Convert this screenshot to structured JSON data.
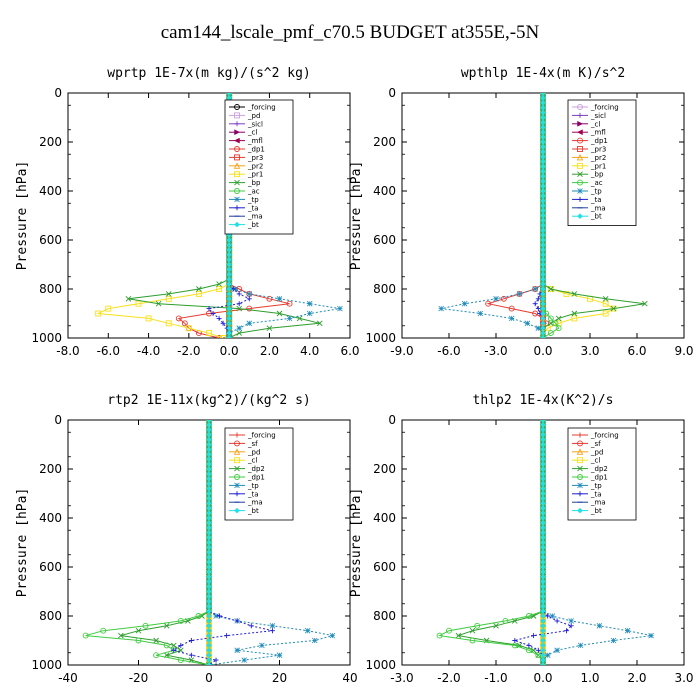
{
  "figure_title": "cam144_lscale_pmf_c70.5  BUDGET at355E,-5N",
  "chart_data": [
    {
      "type": "line",
      "title": "wprtp  1E-7x(m kg)/(s^2 kg)",
      "ylabel": "Pressure [hPa]",
      "xlim": [
        -8,
        6
      ],
      "ylim": [
        1000,
        0
      ],
      "xticks": [
        "-8.0",
        "-6.0",
        "-4.0",
        "-2.0",
        "0.0",
        "2.0",
        "4.0",
        "6.0"
      ],
      "yticks": [
        "0",
        "200",
        "400",
        "600",
        "800",
        "1000"
      ],
      "levels": [
        780,
        800,
        820,
        840,
        860,
        880,
        900,
        920,
        940,
        960,
        980,
        1000
      ],
      "series": [
        {
          "name": "_forcing",
          "color": "#000000",
          "marker": "o",
          "values": [
            0,
            0,
            0,
            0,
            0,
            0,
            0,
            0,
            0,
            0,
            0,
            0
          ]
        },
        {
          "name": "_pd",
          "color": "#c9a0dc",
          "marker": "s",
          "values": [
            0,
            0,
            0,
            0,
            0,
            0,
            0,
            0,
            0,
            0,
            0,
            0
          ]
        },
        {
          "name": "_sicl",
          "color": "#7b3fc4",
          "marker": "+",
          "values": [
            0,
            0,
            0,
            0,
            0,
            0,
            0,
            0,
            0,
            0,
            0,
            0
          ]
        },
        {
          "name": "_cl",
          "color": "#8b0068",
          "marker": ">",
          "values": [
            0,
            0,
            0,
            0,
            0,
            0,
            0,
            0,
            0,
            0,
            0,
            0
          ]
        },
        {
          "name": "_mfl",
          "color": "#a0004f",
          "marker": "<",
          "values": [
            0,
            0,
            0,
            0,
            0,
            0,
            0,
            0,
            0,
            0,
            0,
            0
          ]
        },
        {
          "name": "_dp1",
          "color": "#e8392f",
          "marker": "o",
          "values": [
            0,
            0.5,
            1.0,
            2.0,
            3.0,
            1.0,
            -1.0,
            -2.5,
            -2.2,
            -2.0,
            -1.5,
            -0.5
          ]
        },
        {
          "name": "_pr3",
          "color": "#e8392f",
          "marker": "s",
          "values": [
            0,
            0,
            0,
            0,
            0,
            0,
            0,
            0,
            0,
            0,
            0,
            0
          ]
        },
        {
          "name": "_pr2",
          "color": "#f7a21b",
          "marker": "^",
          "values": [
            0,
            0,
            0,
            0,
            0,
            0,
            0,
            0,
            0,
            0,
            0,
            0
          ]
        },
        {
          "name": "_pr1",
          "color": "#f7e01b",
          "marker": "s",
          "values": [
            0,
            -0.5,
            -1.5,
            -3.0,
            -4.5,
            -6.0,
            -6.5,
            -4.0,
            -3.0,
            -2.0,
            -1.0,
            -0.3
          ]
        },
        {
          "name": "_bp",
          "color": "#2e9e2e",
          "marker": "x",
          "values": [
            -0.5,
            -1.5,
            -3.0,
            -5.0,
            -3.5,
            0.5,
            2.5,
            3.5,
            4.5,
            2.0,
            0.5,
            0
          ]
        },
        {
          "name": "_ac",
          "color": "#3fcc3f",
          "marker": "o",
          "values": [
            0,
            0,
            0,
            0,
            0,
            0,
            0,
            0,
            0,
            0,
            0,
            0
          ]
        },
        {
          "name": "_tp",
          "color": "#1f8bb8",
          "marker": "*",
          "values": [
            0,
            0.3,
            1.0,
            2.5,
            4.0,
            5.5,
            4.0,
            3.0,
            1.0,
            0.5,
            0,
            0
          ]
        },
        {
          "name": "_ta",
          "color": "#1f1fd0",
          "marker": "+",
          "values": [
            0,
            0.2,
            0.5,
            1.0,
            0.5,
            -1.0,
            -0.8,
            -0.5,
            -0.3,
            -0.1,
            0,
            0
          ]
        },
        {
          "name": "_ma",
          "color": "#1f3fa0",
          "marker": "-",
          "values": [
            0,
            0,
            0,
            0,
            0,
            0,
            0,
            0,
            0,
            0,
            0,
            0
          ]
        },
        {
          "name": "_bt",
          "color": "#1fe0e8",
          "marker": "d",
          "values": [
            0,
            0,
            0,
            0,
            0,
            0,
            0,
            0,
            0,
            0,
            0,
            0
          ]
        }
      ]
    },
    {
      "type": "line",
      "title": "wpthlp  1E-4x(m K)/s^2",
      "ylabel": "Pressure [hPa]",
      "xlim": [
        -9,
        9
      ],
      "ylim": [
        1000,
        0
      ],
      "xticks": [
        "-9.0",
        "-6.0",
        "-3.0",
        "0.0",
        "3.0",
        "6.0",
        "9.0"
      ],
      "yticks": [
        "0",
        "200",
        "400",
        "600",
        "800",
        "1000"
      ],
      "levels": [
        780,
        800,
        820,
        840,
        860,
        880,
        900,
        920,
        940,
        960,
        980,
        1000
      ],
      "series": [
        {
          "name": "_forcing",
          "color": "#c9a0dc",
          "marker": "o",
          "values": [
            0,
            0,
            0,
            0,
            0,
            0,
            0,
            0,
            0,
            0,
            0,
            0
          ]
        },
        {
          "name": "_sicl",
          "color": "#7b3fc4",
          "marker": "+",
          "values": [
            0,
            0,
            0,
            0,
            0,
            0,
            0,
            0,
            0,
            0,
            0,
            0
          ]
        },
        {
          "name": "_cl",
          "color": "#8b0068",
          "marker": ">",
          "values": [
            0,
            0,
            0,
            0,
            0,
            0,
            0,
            0,
            0,
            0,
            0,
            0
          ]
        },
        {
          "name": "_mfl",
          "color": "#a0004f",
          "marker": "<",
          "values": [
            0,
            0,
            0,
            0,
            0,
            0,
            0,
            0,
            0,
            0,
            0,
            0
          ]
        },
        {
          "name": "_dp1",
          "color": "#e8392f",
          "marker": "o",
          "values": [
            0,
            -0.5,
            -1.5,
            -2.5,
            -3.5,
            -2.0,
            -0.5,
            0,
            0.2,
            0,
            0,
            0
          ]
        },
        {
          "name": "_pr3",
          "color": "#e8392f",
          "marker": "s",
          "values": [
            0,
            0,
            0,
            0,
            0,
            0,
            0,
            0,
            0,
            0,
            0,
            0
          ]
        },
        {
          "name": "_pr2",
          "color": "#f7a21b",
          "marker": "^",
          "values": [
            0,
            0,
            0,
            0,
            0,
            0,
            0,
            0,
            0,
            0,
            0,
            0
          ]
        },
        {
          "name": "_pr1",
          "color": "#f7e01b",
          "marker": "s",
          "values": [
            0,
            0.5,
            1.5,
            3.0,
            4.0,
            4.5,
            4.0,
            2.0,
            1.0,
            0.3,
            0,
            0
          ]
        },
        {
          "name": "_bp",
          "color": "#2e9e2e",
          "marker": "x",
          "values": [
            0,
            0.5,
            2.0,
            4.0,
            6.5,
            4.5,
            2.0,
            1.0,
            0.5,
            0,
            0,
            0
          ]
        },
        {
          "name": "_ac",
          "color": "#3fcc3f",
          "marker": "o",
          "values": [
            0,
            0,
            0,
            0,
            0,
            0,
            0.2,
            0.5,
            0.8,
            1.0,
            0.5,
            0
          ]
        },
        {
          "name": "_tp",
          "color": "#1f8bb8",
          "marker": "*",
          "values": [
            0,
            -0.5,
            -1.5,
            -3.0,
            -5.0,
            -6.5,
            -4.0,
            -2.0,
            -1.0,
            -0.3,
            0,
            0
          ]
        },
        {
          "name": "_ta",
          "color": "#1f1fd0",
          "marker": "+",
          "values": [
            0,
            0,
            -0.2,
            -0.3,
            -0.5,
            -0.3,
            -0.2,
            0,
            0,
            0,
            0,
            0
          ]
        },
        {
          "name": "_ma",
          "color": "#1f3fa0",
          "marker": "-",
          "values": [
            0,
            0,
            0,
            0,
            0,
            0,
            0,
            0,
            0,
            0,
            0,
            0
          ]
        },
        {
          "name": "_bt",
          "color": "#1fe0e8",
          "marker": "d",
          "values": [
            0,
            0,
            0,
            0,
            0,
            0,
            0,
            0,
            0,
            0,
            0,
            0
          ]
        }
      ]
    },
    {
      "type": "line",
      "title": "rtp2  1E-11x(kg^2)/(kg^2 s)",
      "ylabel": "Pressure [hPa]",
      "xlim": [
        -40,
        40
      ],
      "ylim": [
        1000,
        0
      ],
      "xticks": [
        "-40",
        "-20",
        "0",
        "20",
        "40"
      ],
      "yticks": [
        "0",
        "200",
        "400",
        "600",
        "800",
        "1000"
      ],
      "levels": [
        780,
        800,
        820,
        840,
        860,
        880,
        900,
        920,
        940,
        960,
        980,
        1000
      ],
      "series": [
        {
          "name": "_forcing",
          "color": "#e8392f",
          "marker": "+",
          "values": [
            0,
            0,
            0,
            0,
            0,
            0,
            0,
            0,
            0,
            0,
            0,
            0
          ]
        },
        {
          "name": "_sf",
          "color": "#e8392f",
          "marker": "o",
          "values": [
            0,
            0,
            0,
            0,
            0,
            0,
            0,
            0,
            0,
            0,
            0,
            0
          ]
        },
        {
          "name": "_pd",
          "color": "#f7a21b",
          "marker": "^",
          "values": [
            0,
            0,
            0,
            0,
            0,
            0,
            0,
            0,
            0,
            0,
            0,
            0
          ]
        },
        {
          "name": "_cl",
          "color": "#f7e01b",
          "marker": "s",
          "values": [
            0,
            0,
            0,
            0,
            0,
            0,
            0,
            0,
            0,
            0,
            0,
            0
          ]
        },
        {
          "name": "_dp2",
          "color": "#2e9e2e",
          "marker": "x",
          "values": [
            0,
            -2,
            -6,
            -12,
            -20,
            -25,
            -15,
            -10,
            -8,
            -12,
            -5,
            0
          ]
        },
        {
          "name": "_dp1",
          "color": "#3fcc3f",
          "marker": "o",
          "values": [
            0,
            -3,
            -8,
            -18,
            -30,
            -35,
            -20,
            -12,
            -10,
            -15,
            -8,
            0
          ]
        },
        {
          "name": "_tp",
          "color": "#1f8bb8",
          "marker": "*",
          "values": [
            0,
            2,
            8,
            18,
            28,
            35,
            30,
            15,
            8,
            20,
            10,
            0
          ]
        },
        {
          "name": "_ta",
          "color": "#1f1fd0",
          "marker": "+",
          "values": [
            0,
            3,
            8,
            12,
            18,
            5,
            -5,
            -8,
            -10,
            -5,
            2,
            0
          ]
        },
        {
          "name": "_ma",
          "color": "#1f3fa0",
          "marker": "-",
          "values": [
            0,
            0,
            0,
            0,
            0,
            0,
            0,
            0,
            0,
            0,
            0,
            0
          ]
        },
        {
          "name": "_bt",
          "color": "#1fe0e8",
          "marker": "d",
          "values": [
            0,
            0,
            0,
            0,
            0,
            0,
            0,
            0,
            0,
            0,
            0,
            0
          ]
        }
      ]
    },
    {
      "type": "line",
      "title": "thlp2  1E-4x(K^2)/s",
      "ylabel": "Pressure [hPa]",
      "xlim": [
        -3,
        3
      ],
      "ylim": [
        1000,
        0
      ],
      "xticks": [
        "-3.0",
        "-2.0",
        "-1.0",
        "0.0",
        "1.0",
        "2.0",
        "3.0"
      ],
      "yticks": [
        "0",
        "200",
        "400",
        "600",
        "800",
        "1000"
      ],
      "levels": [
        780,
        800,
        820,
        840,
        860,
        880,
        900,
        920,
        940,
        960,
        980,
        1000
      ],
      "series": [
        {
          "name": "_forcing",
          "color": "#e8392f",
          "marker": "+",
          "values": [
            0,
            0,
            0,
            0,
            0,
            0,
            0,
            0,
            0,
            0,
            0,
            0
          ]
        },
        {
          "name": "_sf",
          "color": "#e8392f",
          "marker": "o",
          "values": [
            0,
            0,
            0,
            0,
            0,
            0,
            0,
            0,
            0,
            0,
            0,
            0
          ]
        },
        {
          "name": "_pd",
          "color": "#f7a21b",
          "marker": "^",
          "values": [
            0,
            0,
            0,
            0,
            0,
            0,
            0,
            0,
            0,
            0,
            0,
            0
          ]
        },
        {
          "name": "_cl",
          "color": "#f7e01b",
          "marker": "s",
          "values": [
            0,
            0,
            0,
            0,
            0,
            0,
            0,
            0,
            0,
            0,
            0,
            0
          ]
        },
        {
          "name": "_dp2",
          "color": "#2e9e2e",
          "marker": "x",
          "values": [
            0,
            -0.2,
            -0.6,
            -1.0,
            -1.5,
            -1.8,
            -1.2,
            -0.5,
            -0.2,
            -0.1,
            0,
            0
          ]
        },
        {
          "name": "_dp1",
          "color": "#3fcc3f",
          "marker": "o",
          "values": [
            0,
            -0.3,
            -0.8,
            -1.4,
            -2.0,
            -2.2,
            -1.5,
            -0.6,
            -0.3,
            -0.1,
            0,
            0
          ]
        },
        {
          "name": "_tp",
          "color": "#1f8bb8",
          "marker": "*",
          "values": [
            0,
            0.2,
            0.6,
            1.2,
            1.8,
            2.3,
            1.5,
            0.8,
            0.3,
            0.1,
            0,
            0
          ]
        },
        {
          "name": "_ta",
          "color": "#1f1fd0",
          "marker": "+",
          "values": [
            0,
            0.1,
            0.3,
            0.6,
            0.5,
            -0.2,
            -0.6,
            -0.3,
            -0.1,
            0,
            0,
            0
          ]
        },
        {
          "name": "_ma",
          "color": "#1f3fa0",
          "marker": "-",
          "values": [
            0,
            0,
            0,
            0,
            0,
            0,
            0,
            0,
            0,
            0,
            0,
            0
          ]
        },
        {
          "name": "_bt",
          "color": "#1fe0e8",
          "marker": "d",
          "values": [
            0,
            0,
            0,
            0,
            0,
            0,
            0,
            0,
            0,
            0,
            0,
            0
          ]
        }
      ]
    }
  ]
}
